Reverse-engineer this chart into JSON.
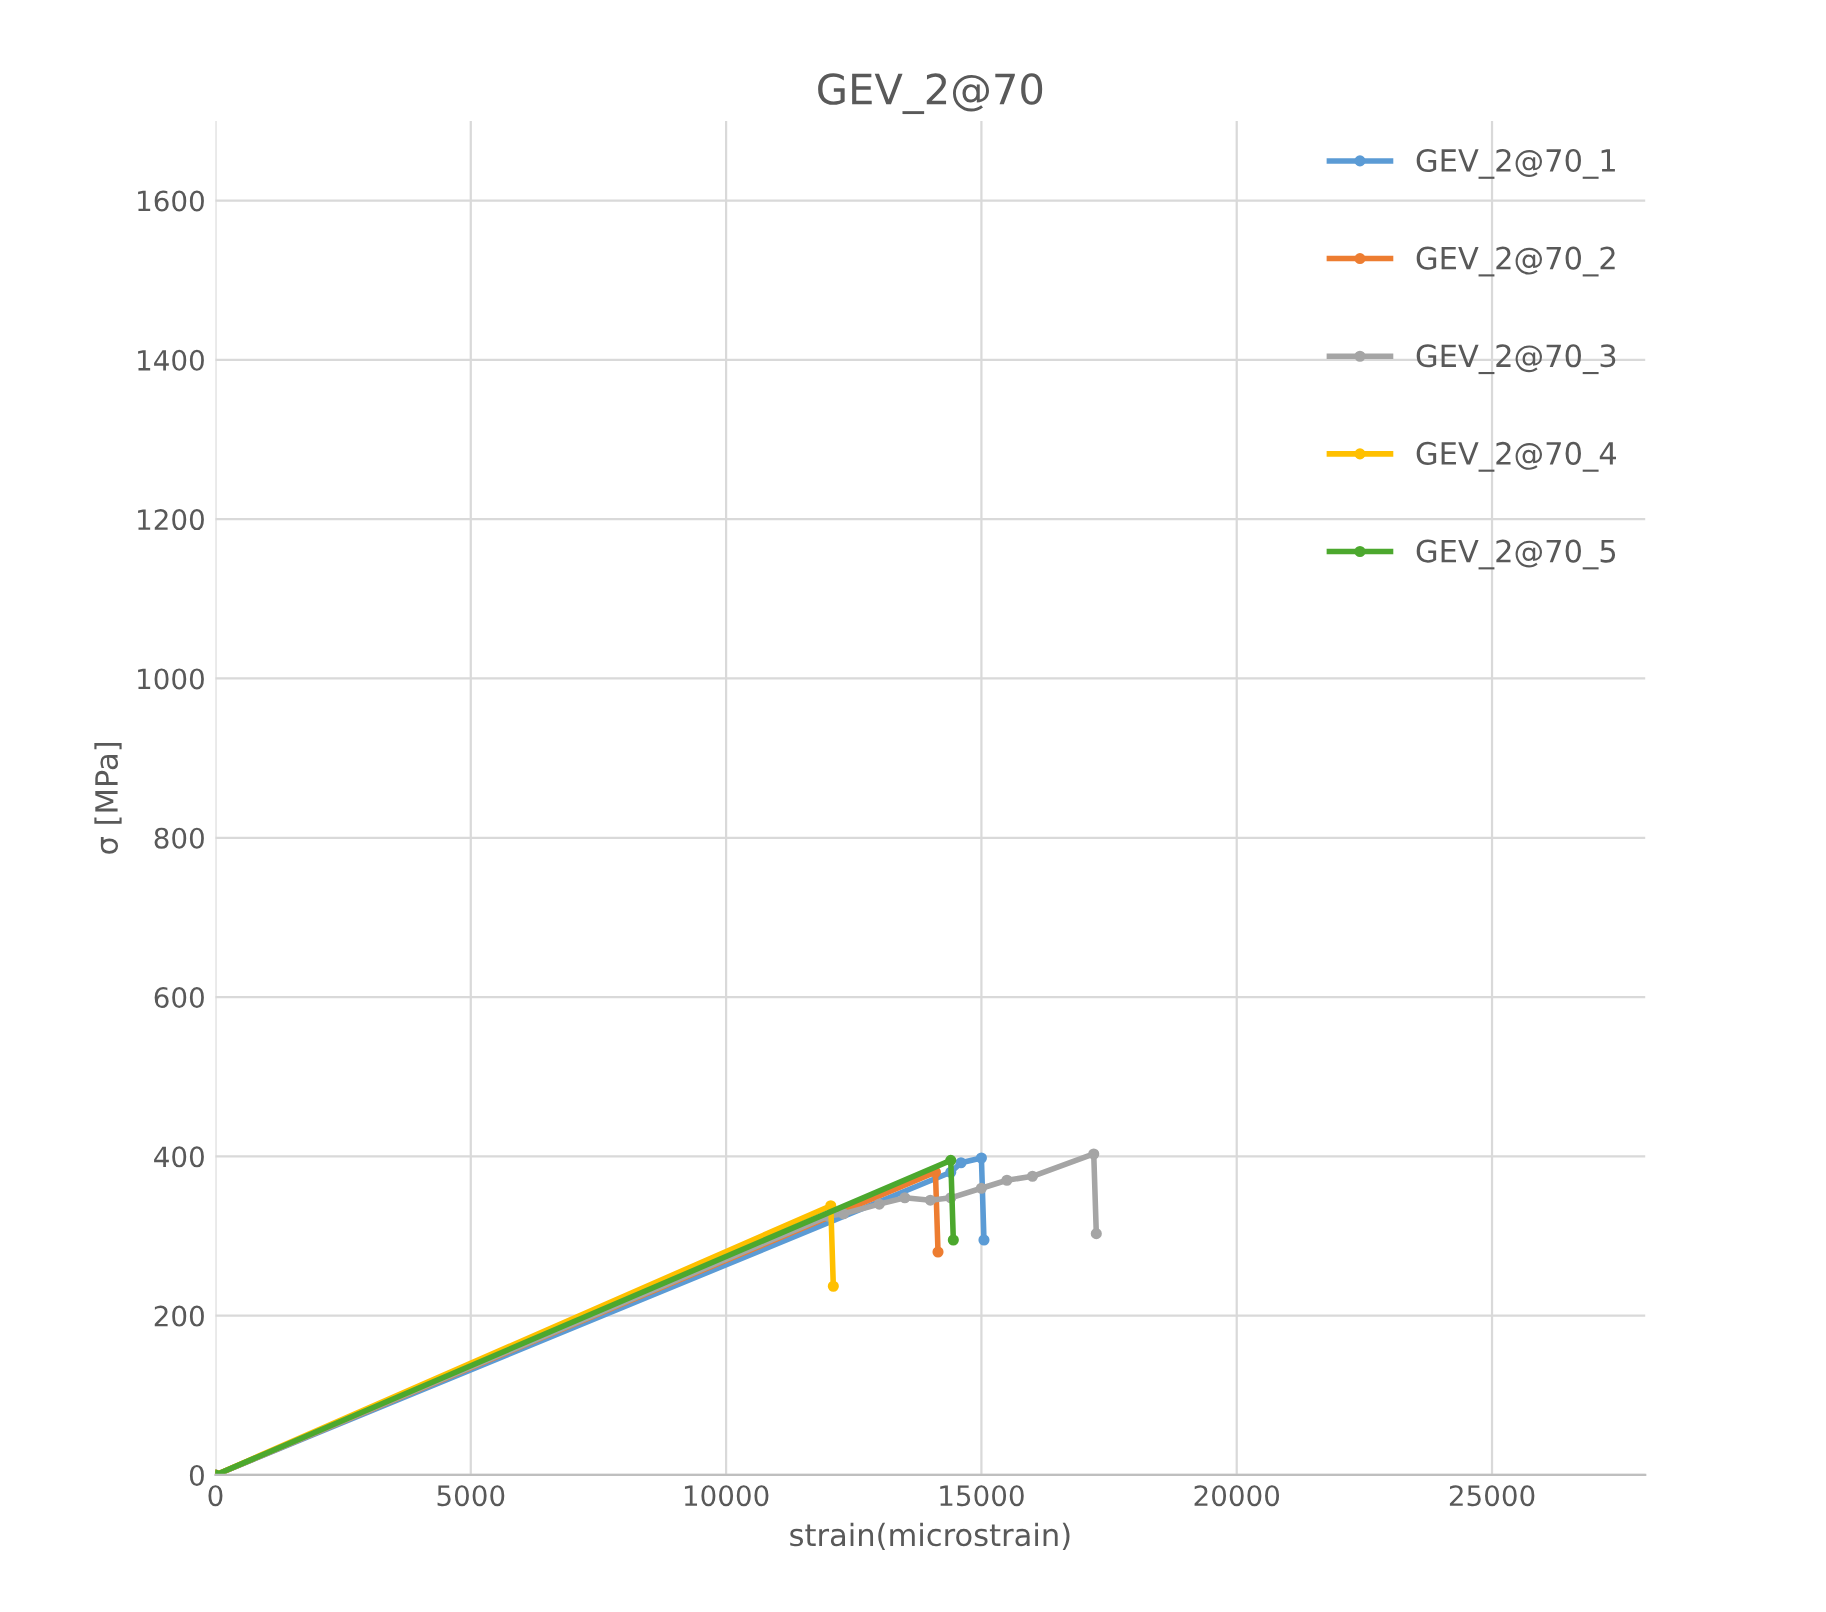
{
  "chart_data": {
    "type": "line",
    "title": "GEV_2@70",
    "xlabel": "strain(microstrain)",
    "ylabel": "σ [MPa]",
    "xlim": [
      0,
      28000
    ],
    "xticks": [
      0,
      5000,
      10000,
      15000,
      20000,
      25000
    ],
    "ylim": [
      0,
      1700
    ],
    "yticks": [
      0,
      200,
      400,
      600,
      800,
      1000,
      1200,
      1400,
      1600
    ],
    "grid": true,
    "legend": "top right",
    "marker": "circle",
    "series": [
      {
        "name": "GEV_2@70_1",
        "color": "#5b9bd5",
        "x": [
          0,
          14400,
          14600,
          15000,
          15050
        ],
        "values": [
          0,
          380,
          392,
          398,
          295
        ]
      },
      {
        "name": "GEV_2@70_2",
        "color": "#ed7d31",
        "x": [
          0,
          14100,
          14150
        ],
        "values": [
          0,
          380,
          280
        ]
      },
      {
        "name": "GEV_2@70_3",
        "color": "#a5a5a5",
        "x": [
          0,
          12000,
          12300,
          13000,
          13500,
          14000,
          14400,
          15000,
          15500,
          16000,
          17200,
          17250
        ],
        "values": [
          0,
          325,
          328,
          340,
          348,
          345,
          348,
          360,
          370,
          375,
          403,
          303
        ]
      },
      {
        "name": "GEV_2@70_4",
        "color": "#ffc000",
        "x": [
          0,
          12050,
          12100
        ],
        "values": [
          0,
          338,
          237
        ]
      },
      {
        "name": "GEV_2@70_5",
        "color": "#4ca82e",
        "x": [
          0,
          14400,
          14450
        ],
        "values": [
          0,
          395,
          295
        ]
      }
    ]
  }
}
